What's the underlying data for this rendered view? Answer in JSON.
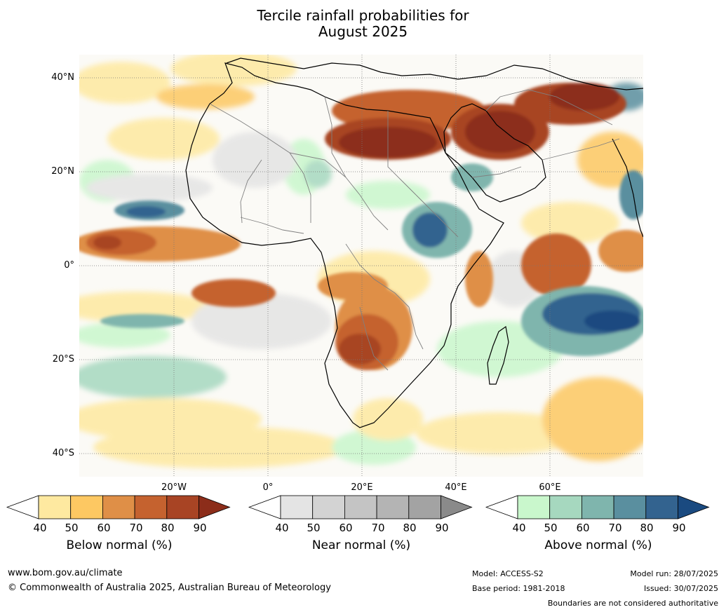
{
  "title_line1": "Tercile rainfall probabilities for",
  "title_line2": "August 2025",
  "lat_labels": [
    "40°N",
    "20°N",
    "0°",
    "20°S",
    "40°S"
  ],
  "lon_labels": [
    "20°W",
    "0°",
    "20°E",
    "40°E",
    "60°E"
  ],
  "colorbars": [
    {
      "label": "Below normal (%)",
      "ticks": [
        "40",
        "50",
        "60",
        "70",
        "80",
        "90"
      ],
      "colors": [
        "#ffffff",
        "#fee9a0",
        "#fdc862",
        "#df8f47",
        "#c5622f",
        "#a84424",
        "#8c2d1a"
      ]
    },
    {
      "label": "Near normal (%)",
      "ticks": [
        "40",
        "50",
        "60",
        "70",
        "80",
        "90"
      ],
      "colors": [
        "#ffffff",
        "#e4e4e4",
        "#d3d3d3",
        "#c4c4c4",
        "#b4b4b4",
        "#a3a3a3",
        "#8a8a8a"
      ]
    },
    {
      "label": "Above normal (%)",
      "ticks": [
        "40",
        "50",
        "60",
        "70",
        "80",
        "90"
      ],
      "colors": [
        "#ffffff",
        "#c9f7cc",
        "#a6d8bf",
        "#7fb5ad",
        "#5a8f9f",
        "#33638f",
        "#1a4a80"
      ]
    }
  ],
  "footer": {
    "url": "www.bom.gov.au/climate",
    "copyright": "© Commonwealth of Australia 2025, Australian Bureau of Meteorology",
    "model": "Model: ACCESS-S2",
    "base_period": "Base period: 1981-2018",
    "model_run": "Model run: 28/07/2025",
    "issued": "Issued: 30/07/2025",
    "boundaries": "Boundaries are not considered authoritative"
  },
  "legend_colors": {
    "below": "#a84424",
    "near": "#c4c4c4",
    "above": "#33638f"
  }
}
